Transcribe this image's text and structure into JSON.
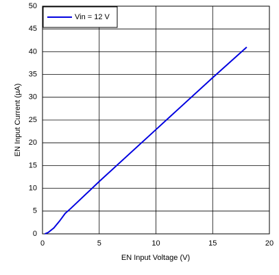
{
  "chart_data": {
    "type": "line",
    "x_label": "EN Input Voltage (V)",
    "y_label": "EN Input Current (µA)",
    "xlim": [
      0,
      20
    ],
    "xticks": [
      0,
      5,
      10,
      15,
      20
    ],
    "ylim": [
      0,
      50
    ],
    "yticks": [
      0,
      5,
      10,
      15,
      20,
      25,
      30,
      35,
      40,
      45,
      50
    ],
    "grid": true,
    "legend": "upper left",
    "series": [
      {
        "name": "Vin = 12 V",
        "color": "#0000e0",
        "x": [
          0.2,
          0.5,
          1,
          1.5,
          2,
          2.5,
          5,
          10,
          15,
          18
        ],
        "values": [
          0,
          0.3,
          1.3,
          2.8,
          4.5,
          5.6,
          11.5,
          22.9,
          34.3,
          41
        ]
      }
    ]
  }
}
